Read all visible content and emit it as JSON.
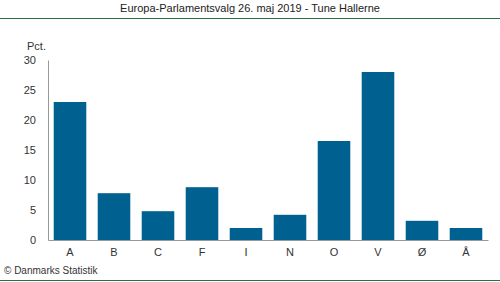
{
  "chart_data": {
    "type": "bar",
    "title": "Europa-Parlamentsvalg 26. maj 2019 - Tune Hallerne",
    "y_label": "Pct.",
    "source": "© Danmarks Statistik",
    "categories": [
      "A",
      "B",
      "C",
      "F",
      "I",
      "N",
      "O",
      "V",
      "Ø",
      "Å"
    ],
    "values": [
      23.0,
      7.8,
      4.8,
      8.8,
      2.0,
      4.2,
      16.5,
      28.0,
      3.2,
      2.0
    ],
    "color": "#00608f",
    "ylim": [
      0,
      30
    ],
    "yticks": [
      0,
      5,
      10,
      15,
      20,
      25,
      30
    ],
    "grid": false
  }
}
